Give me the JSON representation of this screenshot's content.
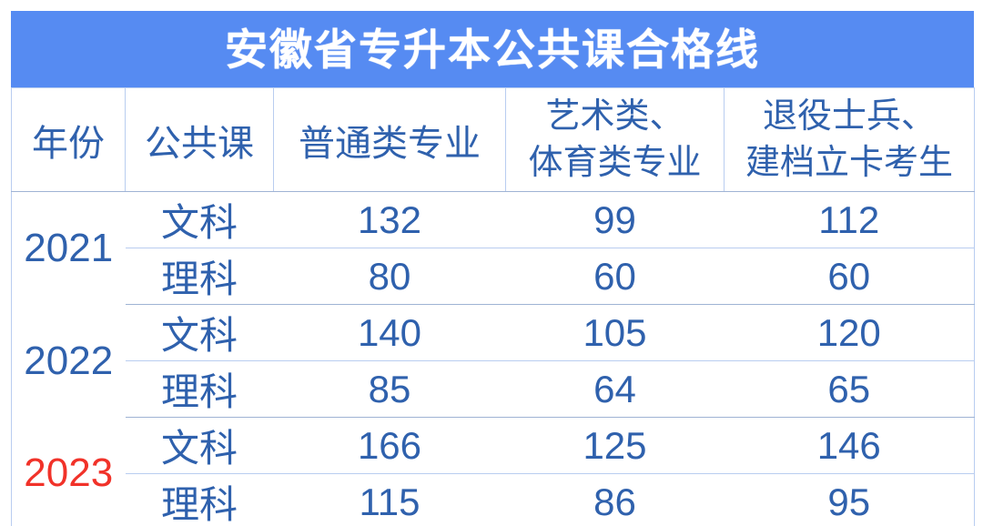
{
  "title": "安徽省专升本公共课合格线",
  "colors": {
    "banner_bg": "#568bf2",
    "text_blue": "#2f61ad",
    "year_red": "#f13229",
    "border_light": "#b9cdf0",
    "group_line": "#9fb3d4"
  },
  "table": {
    "columns": [
      {
        "label": "年份"
      },
      {
        "label": "公共课"
      },
      {
        "label": "普通类专业"
      },
      {
        "label_line1": "艺术类、",
        "label_line2": "体育类专业"
      },
      {
        "label_line1": "退役士兵、",
        "label_line2": "建档立卡考生"
      }
    ],
    "groups": [
      {
        "year": "2021",
        "rows": [
          {
            "course": "文科",
            "values": [
              "132",
              "99",
              "112"
            ]
          },
          {
            "course": "理科",
            "values": [
              "80",
              "60",
              "60"
            ]
          }
        ]
      },
      {
        "year": "2022",
        "rows": [
          {
            "course": "文科",
            "values": [
              "140",
              "105",
              "120"
            ]
          },
          {
            "course": "理科",
            "values": [
              "85",
              "64",
              "65"
            ]
          }
        ]
      },
      {
        "year": "2023",
        "rows": [
          {
            "course": "文科",
            "values": [
              "166",
              "125",
              "146"
            ]
          },
          {
            "course": "理科",
            "values": [
              "115",
              "86",
              "95"
            ]
          }
        ]
      }
    ]
  }
}
